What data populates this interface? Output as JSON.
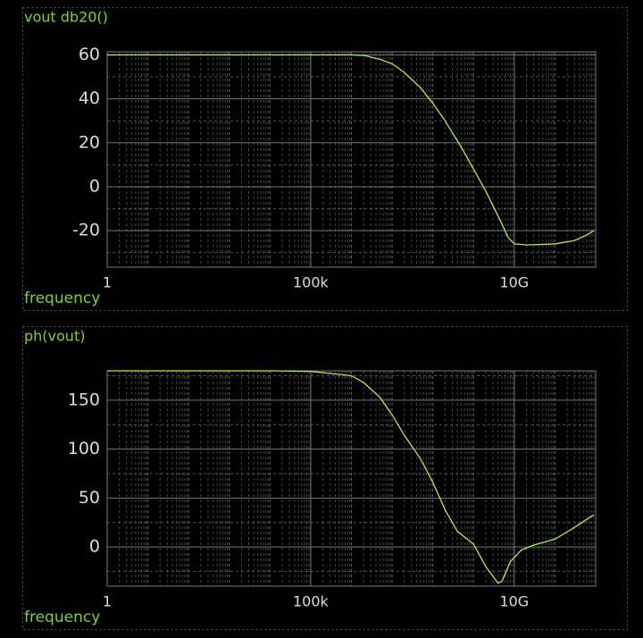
{
  "chart_data": [
    {
      "type": "line",
      "title": "vout db20()",
      "xlabel": "frequency",
      "xscale": "log",
      "color": "#b2ec4e",
      "xlim": [
        1,
        1000000000000
      ],
      "xticks": [
        1,
        {
          "value": 100000,
          "label": "100k"
        },
        {
          "value": 10000000000,
          "label": "10G"
        }
      ],
      "ylim": [
        -36.6,
        61.4
      ],
      "yticks": [
        60,
        40,
        20,
        0,
        -20
      ],
      "yminorticks": [
        50,
        30,
        10,
        -10,
        -30
      ],
      "grid": true,
      "x": [
        1,
        1000000,
        2000000,
        5000000,
        10000000,
        20000000,
        50000000,
        100000000,
        200000000,
        500000000,
        1000000000,
        2000000000,
        5000000000,
        7000000000,
        10000000000,
        20000000000,
        100000000000,
        300000000000,
        600000000000,
        900000000000
      ],
      "values": [
        60,
        60,
        59.8,
        58,
        56,
        52,
        45,
        38,
        30,
        18,
        8,
        -2,
        -17,
        -23,
        -26,
        -26.5,
        -26,
        -24.5,
        -22,
        -20
      ]
    },
    {
      "type": "line",
      "title": "ph(vout)",
      "xlabel": "frequency",
      "xscale": "log",
      "color": "#b2ec4e",
      "xlim": [
        1,
        1000000000000
      ],
      "xticks": [
        1,
        {
          "value": 100000,
          "label": "100k"
        },
        {
          "value": 10000000000,
          "label": "10G"
        }
      ],
      "ylim": [
        -40,
        180
      ],
      "yticks": [
        150,
        100,
        50,
        0
      ],
      "yminorticks": [
        175,
        125,
        75,
        25,
        -25
      ],
      "grid": true,
      "x": [
        1,
        10000,
        100000,
        1000000,
        2000000,
        5000000,
        10000000,
        20000000,
        50000000,
        100000000,
        200000000,
        400000000,
        1000000000,
        2000000000,
        4000000000,
        5000000000,
        8000000000,
        15000000000,
        30000000000,
        100000000000,
        300000000000,
        900000000000
      ],
      "values": [
        180,
        180,
        179.5,
        175,
        168,
        153,
        135,
        114,
        90,
        66,
        38,
        16,
        3,
        -20,
        -37,
        -35,
        -15,
        -3,
        2,
        8,
        20,
        33
      ]
    }
  ]
}
